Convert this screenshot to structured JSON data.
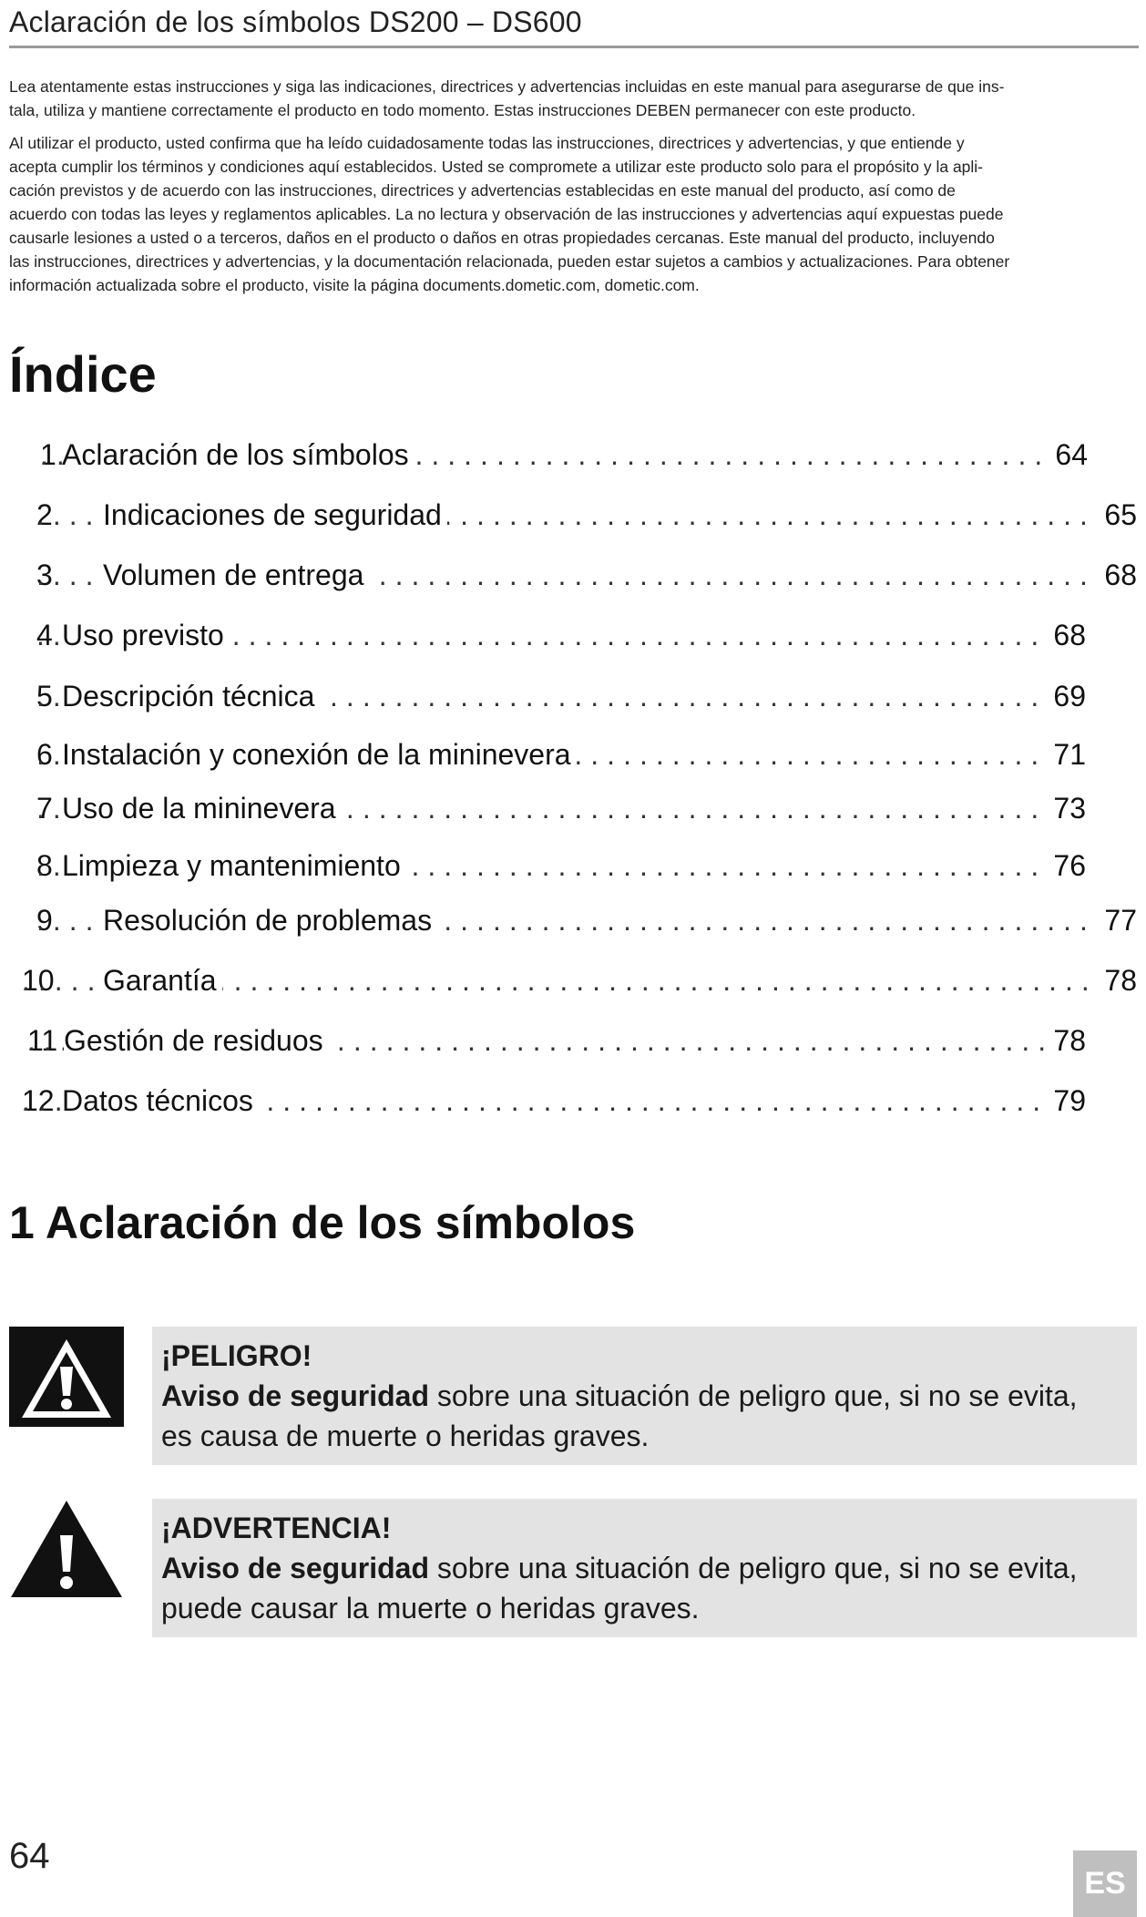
{
  "header": {
    "title": "Aclaración de los símbolos DS200 – DS600"
  },
  "intro": {
    "paragraph1": [
      "Lea atentamente estas instrucciones y siga las indicaciones, directrices y advertencias incluidas en este manual para asegurarse de que ins-",
      "tala, utiliza y mantiene correctamente el producto en todo momento. Estas instrucciones DEBEN permanecer con este producto."
    ],
    "paragraph2": [
      "Al utilizar el producto, usted confirma que ha leído cuidadosamente todas las instrucciones, directrices y advertencias, y que entiende y",
      "acepta cumplir los términos y condiciones aquí establecidos. Usted se compromete a utilizar este producto solo para el propósito y la apli-",
      "cación previstos y de acuerdo con las instrucciones, directrices y advertencias establecidas en este manual del producto, así como de",
      "acuerdo con todas las leyes y reglamentos aplicables. La no lectura y observación de las instrucciones y advertencias aquí expuestas puede",
      "causarle lesiones a usted o a terceros, daños en el producto o daños en otras propiedades cercanas. Este manual del producto, incluyendo",
      "las instrucciones, directrices y advertencias, y la documentación relacionada, pueden estar sujetos a cambios y actualizaciones. Para obtener",
      "información actualizada sobre el producto, visite la página documents.dometic.com, dometic.com."
    ]
  },
  "toc": {
    "heading": "Índice",
    "entries": [
      {
        "num": "1",
        "title": "Aclaración de los símbolos",
        "page": "64"
      },
      {
        "num": "2",
        "title": "Indicaciones de seguridad",
        "page": "65"
      },
      {
        "num": "3",
        "title": "Volumen de entrega",
        "page": "68"
      },
      {
        "num": "4",
        "title": "Uso previsto",
        "page": "68"
      },
      {
        "num": "5",
        "title": "Descripción técnica",
        "page": "69"
      },
      {
        "num": "6",
        "title": "Instalación y conexión de la mininevera",
        "page": "71"
      },
      {
        "num": "7",
        "title": "Uso de la mininevera",
        "page": "73"
      },
      {
        "num": "8",
        "title": "Limpieza y mantenimiento",
        "page": "76"
      },
      {
        "num": "9",
        "title": "Resolución de problemas",
        "page": "77"
      },
      {
        "num": "10",
        "title": "Garantía",
        "page": "78"
      },
      {
        "num": "11",
        "title": "Gestión de residuos",
        "page": "78"
      },
      {
        "num": "12",
        "title": "Datos técnicos",
        "page": "79"
      }
    ]
  },
  "section1": {
    "heading": "1 Aclaración de los símbolos",
    "notices": [
      {
        "icon": "danger-icon",
        "title": "¡PELIGRO!",
        "bold": "Aviso de seguridad",
        "text_line1": " sobre una situación de peligro que, si no se evita,",
        "text_line2": "es causa de muerte o heridas graves."
      },
      {
        "icon": "warning-icon",
        "title": "¡ADVERTENCIA!",
        "bold": "Aviso de seguridad",
        "text_line1": " sobre una situación de peligro que, si no se evita,",
        "text_line2": "puede causar la muerte o heridas graves."
      }
    ]
  },
  "footer": {
    "page_number": "64",
    "language": "ES"
  }
}
